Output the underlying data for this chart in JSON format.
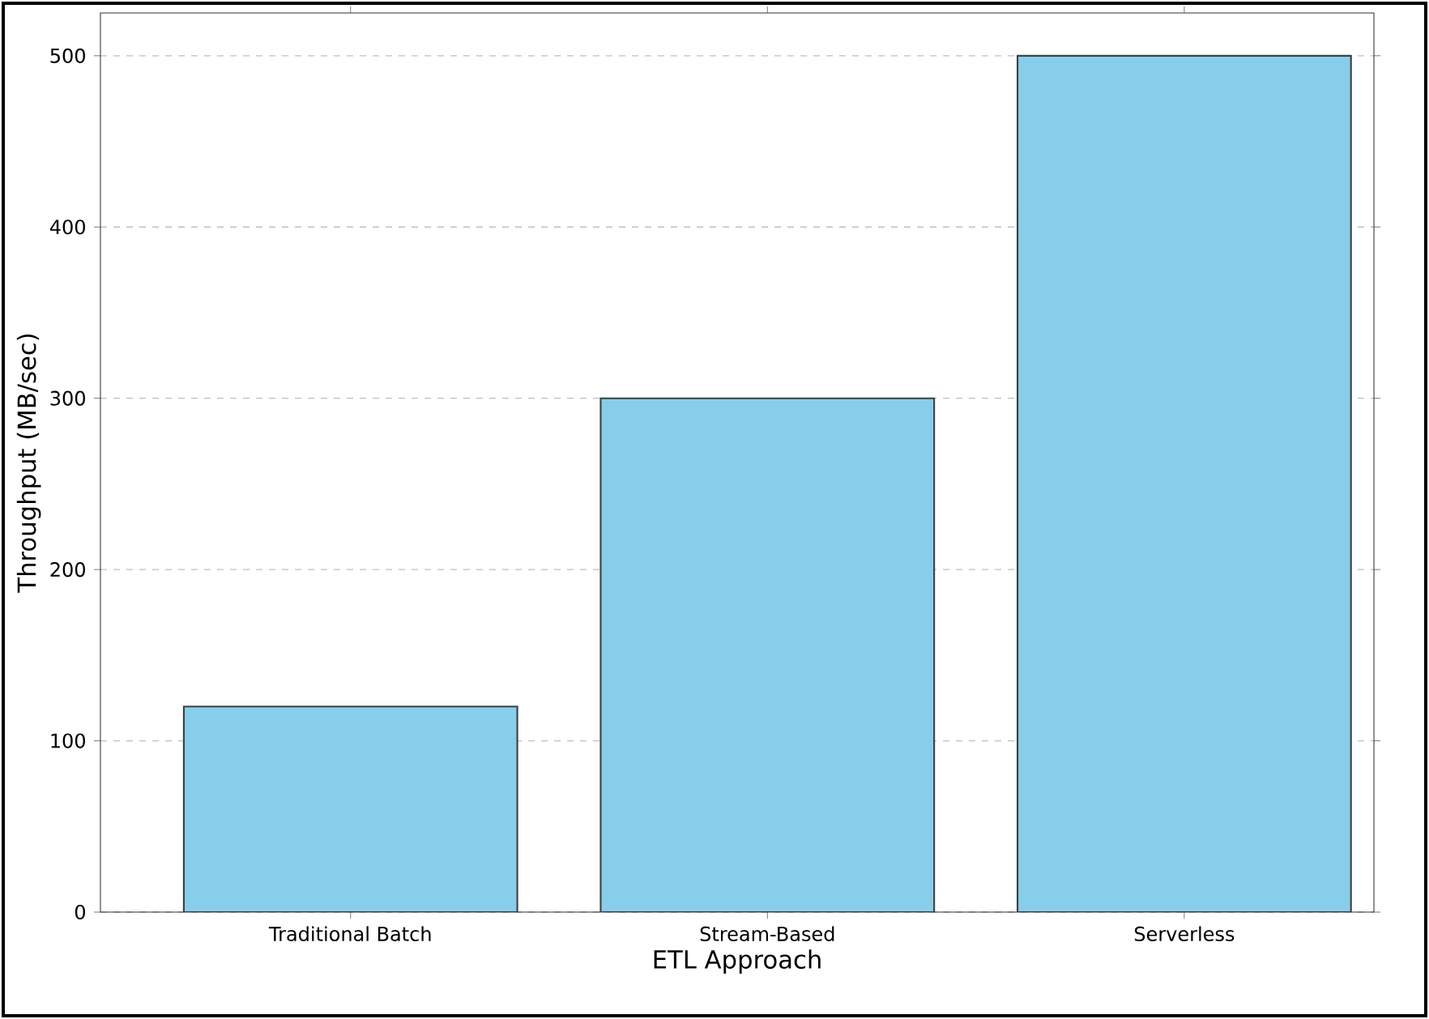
{
  "chart_data": {
    "type": "bar",
    "xlabel": "ETL Approach",
    "ylabel": "Throughput (MB/sec)",
    "categories": [
      "Traditional Batch",
      "Stream-Based",
      "Serverless"
    ],
    "values": [
      120,
      300,
      500
    ],
    "color": "#87ceeb",
    "ylim": [
      0,
      525
    ],
    "yticks": [
      0,
      100,
      200,
      300,
      400,
      500
    ],
    "grid": "y"
  }
}
